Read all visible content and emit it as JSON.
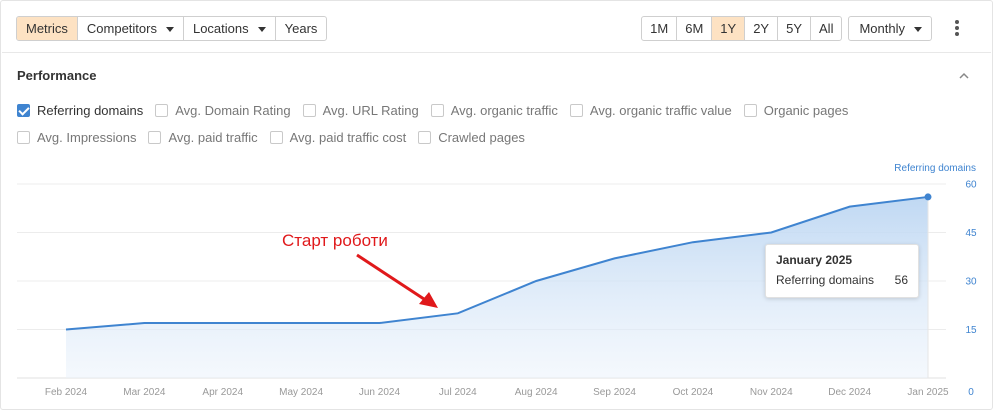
{
  "toolbar": {
    "tabs": [
      {
        "label": "Metrics",
        "active": true
      },
      {
        "label": "Competitors",
        "dropdown": true
      },
      {
        "label": "Locations",
        "dropdown": true
      },
      {
        "label": "Years"
      }
    ]
  },
  "range": {
    "options": [
      "1M",
      "6M",
      "1Y",
      "2Y",
      "5Y",
      "All"
    ],
    "selected": "1Y",
    "interval": "Monthly"
  },
  "section": {
    "title": "Performance"
  },
  "metrics": [
    [
      {
        "label": "Referring domains",
        "checked": true
      },
      {
        "label": "Avg. Domain Rating",
        "checked": false
      },
      {
        "label": "Avg. URL Rating",
        "checked": false
      },
      {
        "label": "Avg. organic traffic",
        "checked": false
      },
      {
        "label": "Avg. organic traffic value",
        "checked": false
      },
      {
        "label": "Organic pages",
        "checked": false
      }
    ],
    [
      {
        "label": "Avg. Impressions",
        "checked": false
      },
      {
        "label": "Avg. paid traffic",
        "checked": false
      },
      {
        "label": "Avg. paid traffic cost",
        "checked": false
      },
      {
        "label": "Crawled pages",
        "checked": false
      }
    ]
  ],
  "colors": {
    "accent": "#3f84d0",
    "active_tab": "#fde2c3",
    "annotation": "#e0191b"
  },
  "chart_data": {
    "type": "area",
    "x": [
      "Feb 2024",
      "Mar 2024",
      "Apr 2024",
      "May 2024",
      "Jun 2024",
      "Jul 2024",
      "Aug 2024",
      "Sep 2024",
      "Oct 2024",
      "Nov 2024",
      "Dec 2024",
      "Jan 2025"
    ],
    "series": [
      {
        "name": "Referring domains",
        "axis": "right",
        "values": [
          15,
          17,
          17,
          17,
          17,
          20,
          30,
          37,
          42,
          45,
          53,
          56
        ]
      }
    ],
    "y_ticks": [
      0,
      15,
      30,
      45,
      60
    ],
    "ylim": [
      0,
      60
    ],
    "grid": true,
    "tooltip": {
      "title": "January 2025",
      "label": "Referring domains",
      "value": "56"
    },
    "annotation": {
      "text": "Старт роботи",
      "arrow_to": "Jul 2024"
    }
  }
}
